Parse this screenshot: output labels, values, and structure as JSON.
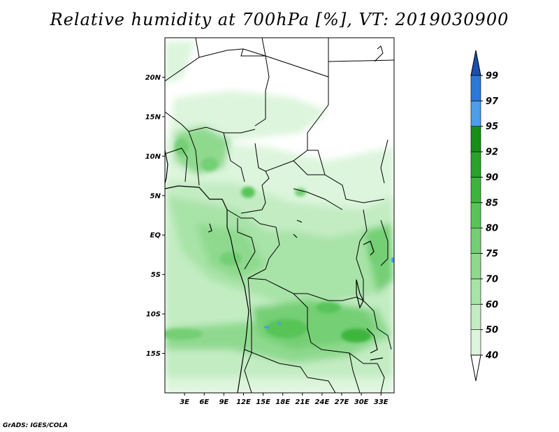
{
  "title": "Relative humidity at 700hPa [%], VT: 2019030900",
  "credit": "GrADS: IGES/COLA",
  "map": {
    "lon_range": [
      0,
      35
    ],
    "lat_range": [
      -20,
      25
    ],
    "lat_ticks": [
      {
        "value": 20,
        "label": "20N"
      },
      {
        "value": 15,
        "label": "15N"
      },
      {
        "value": 10,
        "label": "10N"
      },
      {
        "value": 5,
        "label": "5N"
      },
      {
        "value": 0,
        "label": "EQ"
      },
      {
        "value": -5,
        "label": "5S"
      },
      {
        "value": -10,
        "label": "10S"
      },
      {
        "value": -15,
        "label": "15S"
      }
    ],
    "lon_ticks": [
      {
        "value": 3,
        "label": "3E"
      },
      {
        "value": 6,
        "label": "6E"
      },
      {
        "value": 9,
        "label": "9E"
      },
      {
        "value": 12,
        "label": "12E"
      },
      {
        "value": 15,
        "label": "15E"
      },
      {
        "value": 18,
        "label": "18E"
      },
      {
        "value": 21,
        "label": "21E"
      },
      {
        "value": 24,
        "label": "24E"
      },
      {
        "value": 27,
        "label": "27E"
      },
      {
        "value": 30,
        "label": "30E"
      },
      {
        "value": 33,
        "label": "33E"
      }
    ]
  },
  "colorbar": {
    "levels": [
      "40",
      "50",
      "60",
      "70",
      "75",
      "80",
      "85",
      "90",
      "92",
      "95",
      "97",
      "99"
    ],
    "colors": [
      "#f0fcf0",
      "#dcf5dc",
      "#c3ecc3",
      "#a8e3a8",
      "#8fd98f",
      "#74cf74",
      "#58c458",
      "#3db53d",
      "#27a327",
      "#168f16",
      "#4c9ee8",
      "#2a78d8",
      "#1a4fb0"
    ],
    "low_color": "#ffffff",
    "high_color": "#1a4fb0"
  }
}
